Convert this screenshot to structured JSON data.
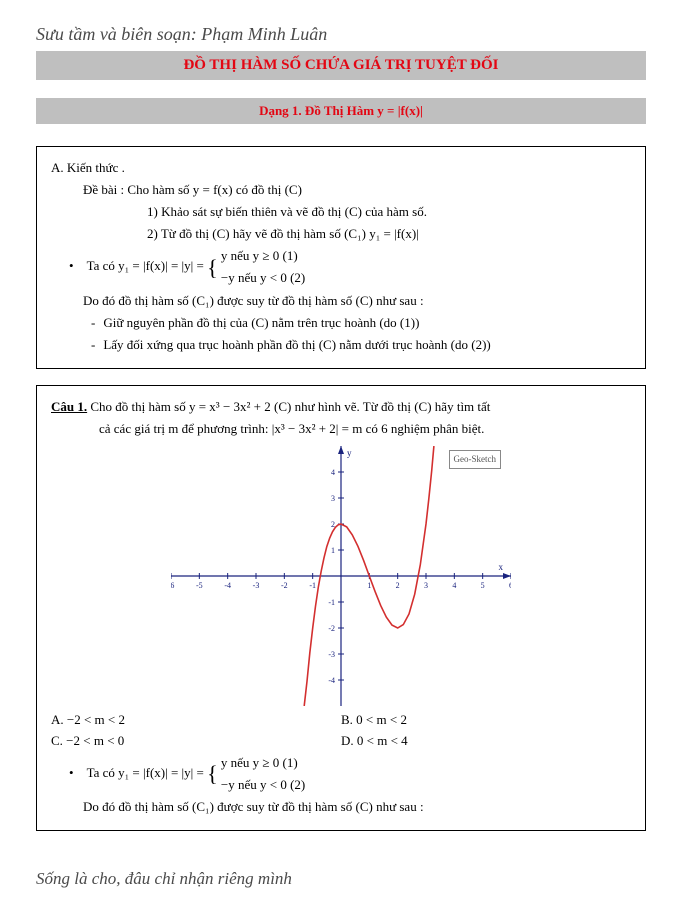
{
  "header_script": "Sưu tầm và biên soạn: Phạm Minh Luân",
  "title": "ĐỒ THỊ HÀM SỐ CHỨA GIÁ TRỊ TUYỆT ĐỐI",
  "subtitle": "Dạng 1. Đồ Thị Hàm y = |f(x)|",
  "box1": {
    "a_label": "A.  Kiến thức .",
    "debai": "Đề bài : Cho hàm số  y = f(x)  có đồ thị (C)",
    "line1": "1) Khảo sát sự biến thiên và vẽ đồ thị (C) của hàm số.",
    "line2": "2) Từ đồ thị (C) hãy vẽ đồ thị hàm số (C₁)   y₁ = |f(x)|",
    "taco_prefix": "Ta có   y₁ = |f(x)| = |y| = ",
    "piece_top": "y nếu y ≥ 0      (1)",
    "piece_bot": "−y nếu y < 0     (2)",
    "dodo": "Do đó đồ thị hàm số (C₁) được suy từ đồ thị hàm số (C) như sau :",
    "dash1": "Giữ nguyên phần đồ thị của (C) nằm trên trục hoành  (do (1))",
    "dash2": "Lấy đối xứng qua trục hoành phần đồ thị (C) nằm dưới trục hoành  (do (2))"
  },
  "box2": {
    "cau_label": "Câu 1.",
    "cau_text_a": "  Cho đồ thị hàm số y = x³ − 3x² + 2  (C) như hình vẽ. Từ đồ thị (C) hãy tìm tất",
    "cau_text_b": "cả các giá trị m để phương trình:  |x³ − 3x² + 2| = m  có 6 nghiệm phân biệt.",
    "answers": {
      "A": "A.  −2 < m < 2",
      "B": "B.  0 < m < 2",
      "C": "C.  −2 < m < 0",
      "D": "D.  0 < m < 4"
    },
    "taco_prefix": "Ta có   y₁ = |f(x)| = |y| = ",
    "piece_top": "y nếu y ≥ 0      (1)",
    "piece_bot": "−y nếu y < 0     (2)",
    "dodo": "Do đó đồ thị hàm số (C₁) được suy từ đồ thị hàm số (C) như sau :"
  },
  "chart": {
    "legend_text": "Geo-Sketch",
    "x_range": [
      -6,
      6
    ],
    "y_range": [
      -5,
      5
    ],
    "x_ticks": [
      -6,
      -5,
      -4,
      -3,
      -2,
      -1,
      1,
      2,
      3,
      4,
      5,
      6
    ],
    "y_ticks": [
      -4,
      -3,
      -2,
      -1,
      1,
      2,
      3,
      4
    ],
    "axis_color": "#1a237e",
    "tick_label_color": "#1a237e",
    "tick_fontsize": 8,
    "axis_label_fontsize": 9,
    "curve_color": "#d32f2f",
    "curve_width": 1.6,
    "background": "#ffffff",
    "curve_points": [
      [
        -1.3,
        -5.0
      ],
      [
        -1.2,
        -4.05
      ],
      [
        -1.1,
        -2.96
      ],
      [
        -1.0,
        -2.0
      ],
      [
        -0.9,
        -1.16
      ],
      [
        -0.8,
        -0.43
      ],
      [
        -0.7,
        0.19
      ],
      [
        -0.6,
        0.7
      ],
      [
        -0.5,
        1.13
      ],
      [
        -0.4,
        1.46
      ],
      [
        -0.3,
        1.7
      ],
      [
        -0.2,
        1.87
      ],
      [
        -0.1,
        1.97
      ],
      [
        0.0,
        2.0
      ],
      [
        0.2,
        1.89
      ],
      [
        0.4,
        1.58
      ],
      [
        0.6,
        1.14
      ],
      [
        0.8,
        0.59
      ],
      [
        1.0,
        0.0
      ],
      [
        1.2,
        -0.59
      ],
      [
        1.4,
        -1.14
      ],
      [
        1.6,
        -1.58
      ],
      [
        1.8,
        -1.89
      ],
      [
        2.0,
        -2.0
      ],
      [
        2.2,
        -1.87
      ],
      [
        2.4,
        -1.46
      ],
      [
        2.6,
        -0.7
      ],
      [
        2.8,
        0.43
      ],
      [
        3.0,
        2.0
      ],
      [
        3.1,
        2.96
      ],
      [
        3.2,
        4.05
      ],
      [
        3.28,
        5.0
      ]
    ]
  },
  "footer_script": "Sống là cho, đâu chỉ nhận riêng mình"
}
